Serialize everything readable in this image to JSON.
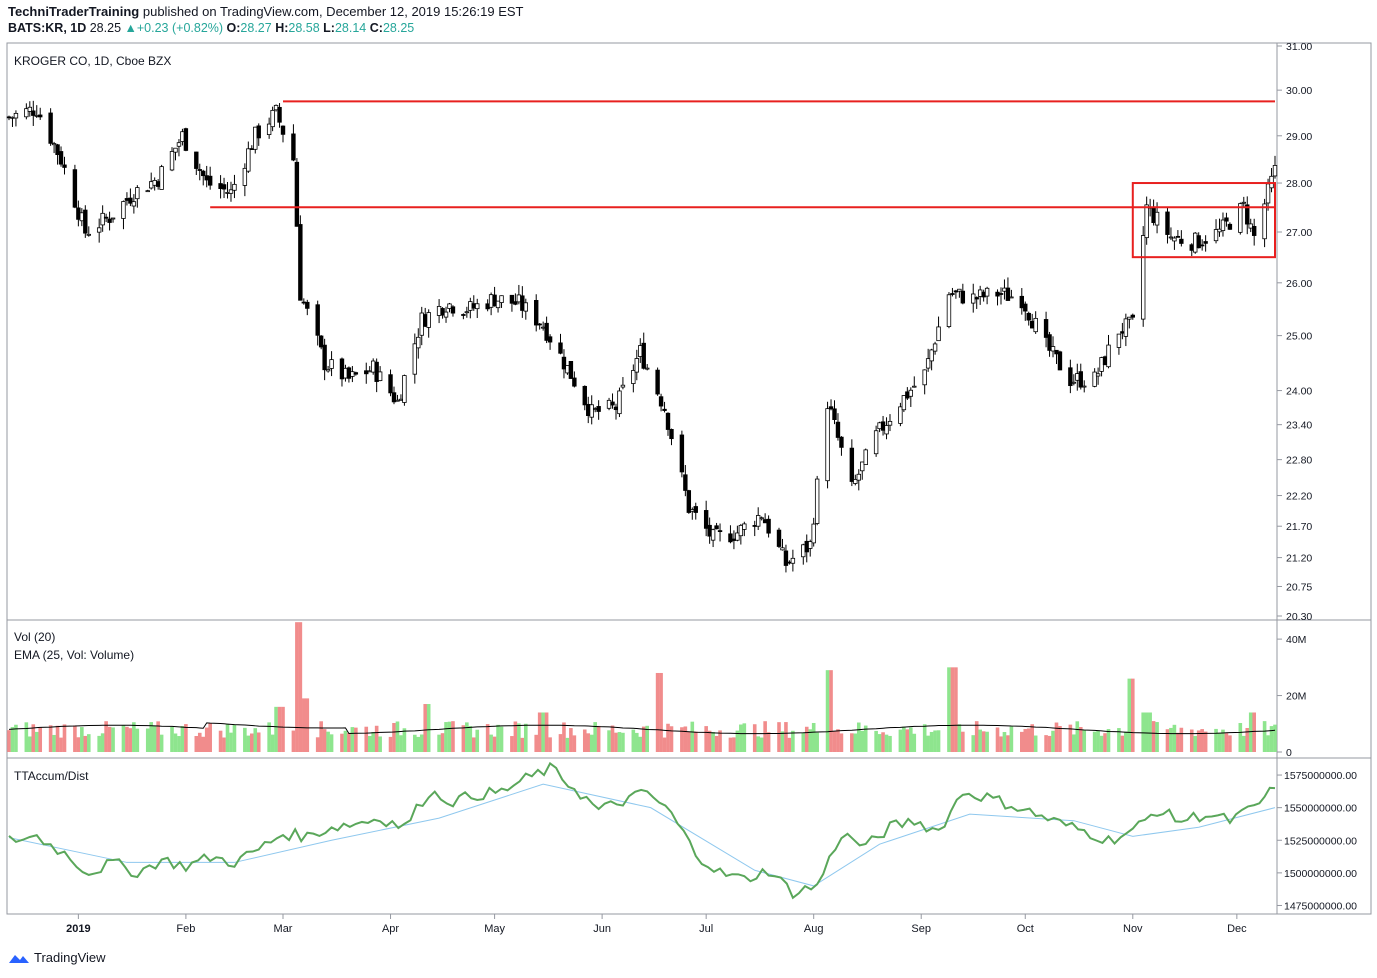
{
  "header": {
    "publisher": "TechniTraderTraining",
    "published_text": "published on TradingView.com, December 12, 2019 15:26:19 EST",
    "symbol": "BATS:KR, 1D",
    "last": "28.25",
    "change_arrow": "▲",
    "change": "+0.23 (+0.82%)",
    "o_label": "O:",
    "o_value": "28.27",
    "h_label": "H:",
    "h_value": "28.58",
    "l_label": "L:",
    "l_value": "28.14",
    "c_label": "C:",
    "c_value": "28.25"
  },
  "footer": {
    "brand": "TradingView"
  },
  "colors": {
    "bull_volume": "#8ee58e",
    "bear_volume": "#f18c8c",
    "accum": "#5aa75a",
    "accum_avg": "#8fc8ee",
    "box": "#e8201f"
  },
  "chart_data": [
    {
      "type": "candlestick",
      "title": "KROGER CO, 1D, Cboe BZX",
      "y_scale": "log",
      "ylim": [
        20.3,
        31.0
      ],
      "y_ticks": [
        "31.00",
        "30.00",
        "29.00",
        "28.00",
        "27.00",
        "26.00",
        "25.00",
        "24.00",
        "23.40",
        "22.80",
        "22.20",
        "21.70",
        "21.20",
        "20.75",
        "20.30"
      ],
      "x_ticks": [
        "2019",
        "Feb",
        "Mar",
        "Apr",
        "May",
        "Jun",
        "Jul",
        "Aug",
        "Sep",
        "Oct",
        "Nov",
        "Dec"
      ],
      "x_range": [
        "2018-12-12",
        "2019-12-12"
      ],
      "close_series": [
        [
          "2018-12-12",
          29.4
        ],
        [
          "2018-12-20",
          29.6
        ],
        [
          "2018-12-27",
          28.5
        ],
        [
          "2019-01-03",
          27.0
        ],
        [
          "2019-01-10",
          27.3
        ],
        [
          "2019-01-17",
          27.8
        ],
        [
          "2019-01-24",
          28.1
        ],
        [
          "2019-01-31",
          29.0
        ],
        [
          "2019-02-07",
          28.0
        ],
        [
          "2019-02-14",
          27.8
        ],
        [
          "2019-02-21",
          29.0
        ],
        [
          "2019-02-27",
          29.5
        ],
        [
          "2019-03-04",
          28.5
        ],
        [
          "2019-03-06",
          25.8
        ],
        [
          "2019-03-13",
          24.5
        ],
        [
          "2019-03-20",
          24.2
        ],
        [
          "2019-03-27",
          24.4
        ],
        [
          "2019-04-03",
          23.8
        ],
        [
          "2019-04-10",
          25.3
        ],
        [
          "2019-04-17",
          25.6
        ],
        [
          "2019-04-24",
          25.5
        ],
        [
          "2019-05-01",
          25.7
        ],
        [
          "2019-05-08",
          25.6
        ],
        [
          "2019-05-15",
          25.2
        ],
        [
          "2019-05-22",
          24.4
        ],
        [
          "2019-05-29",
          23.6
        ],
        [
          "2019-06-05",
          23.7
        ],
        [
          "2019-06-12",
          24.7
        ],
        [
          "2019-06-19",
          23.7
        ],
        [
          "2019-06-26",
          22.0
        ],
        [
          "2019-07-03",
          21.5
        ],
        [
          "2019-07-10",
          21.6
        ],
        [
          "2019-07-17",
          21.9
        ],
        [
          "2019-07-24",
          21.1
        ],
        [
          "2019-07-31",
          21.4
        ],
        [
          "2019-08-05",
          23.8
        ],
        [
          "2019-08-12",
          22.3
        ],
        [
          "2019-08-19",
          23.2
        ],
        [
          "2019-08-26",
          23.8
        ],
        [
          "2019-09-02",
          24.3
        ],
        [
          "2019-09-09",
          25.8
        ],
        [
          "2019-09-16",
          25.7
        ],
        [
          "2019-09-23",
          25.8
        ],
        [
          "2019-09-30",
          25.7
        ],
        [
          "2019-10-07",
          24.8
        ],
        [
          "2019-10-14",
          24.2
        ],
        [
          "2019-10-21",
          24.2
        ],
        [
          "2019-10-28",
          25.1
        ],
        [
          "2019-11-01",
          25.2
        ],
        [
          "2019-11-05",
          27.5
        ],
        [
          "2019-11-12",
          26.9
        ],
        [
          "2019-11-19",
          26.8
        ],
        [
          "2019-11-26",
          27.0
        ],
        [
          "2019-12-03",
          27.5
        ],
        [
          "2019-12-06",
          26.9
        ],
        [
          "2019-12-12",
          28.25
        ]
      ],
      "horizontal_lines": [
        {
          "value": 29.75,
          "from": "2019-03-01",
          "to": "2019-12-12",
          "color": "#e8201f"
        },
        {
          "value": 27.5,
          "from": "2019-02-08",
          "to": "2019-12-12",
          "color": "#e8201f"
        }
      ],
      "rectangle": {
        "from": "2019-11-01",
        "to": "2019-12-12",
        "top": 28.0,
        "bottom": 26.5,
        "color": "#e8201f"
      }
    },
    {
      "type": "bar",
      "title": "Vol (20)",
      "series_label": "EMA (25, Vol: Volume)",
      "ylim": [
        0,
        45
      ],
      "y_ticks": [
        "40M",
        "20M",
        "0"
      ],
      "unit": "M",
      "volume_ema_level": 8,
      "spikes": [
        [
          "2019-03-06",
          46
        ],
        [
          "2019-02-28",
          16
        ],
        [
          "2019-03-08",
          19
        ],
        [
          "2019-06-17",
          28
        ],
        [
          "2019-08-05",
          29
        ],
        [
          "2019-09-10",
          30
        ],
        [
          "2019-11-01",
          26
        ],
        [
          "2019-11-05",
          14
        ],
        [
          "2019-12-06",
          14
        ],
        [
          "2019-05-15",
          14
        ],
        [
          "2019-04-12",
          17
        ]
      ]
    },
    {
      "type": "line",
      "title": "TTAccum/Dist",
      "ylim": [
        1470000000,
        1585000000
      ],
      "y_ticks": [
        "1575000000.00",
        "1550000000.00",
        "1525000000.00",
        "1500000000.00",
        "1475000000.00"
      ],
      "series_points": [
        [
          "2018-12-12",
          1525000000.0
        ],
        [
          "2018-12-20",
          1528000000.0
        ],
        [
          "2018-12-28",
          1515000000.0
        ],
        [
          "2019-01-04",
          1500000000.0
        ],
        [
          "2019-01-11",
          1508000000.0
        ],
        [
          "2019-01-18",
          1500000000.0
        ],
        [
          "2019-01-25",
          1510000000.0
        ],
        [
          "2019-02-01",
          1505000000.0
        ],
        [
          "2019-02-08",
          1512000000.0
        ],
        [
          "2019-02-15",
          1508000000.0
        ],
        [
          "2019-02-22",
          1518000000.0
        ],
        [
          "2019-03-01",
          1530000000.0
        ],
        [
          "2019-03-08",
          1528000000.0
        ],
        [
          "2019-03-15",
          1535000000.0
        ],
        [
          "2019-03-22",
          1538000000.0
        ],
        [
          "2019-03-29",
          1542000000.0
        ],
        [
          "2019-04-05",
          1535000000.0
        ],
        [
          "2019-04-12",
          1562000000.0
        ],
        [
          "2019-04-19",
          1555000000.0
        ],
        [
          "2019-04-26",
          1560000000.0
        ],
        [
          "2019-05-03",
          1562000000.0
        ],
        [
          "2019-05-10",
          1572000000.0
        ],
        [
          "2019-05-17",
          1580000000.0
        ],
        [
          "2019-05-24",
          1565000000.0
        ],
        [
          "2019-05-31",
          1548000000.0
        ],
        [
          "2019-06-07",
          1555000000.0
        ],
        [
          "2019-06-14",
          1562000000.0
        ],
        [
          "2019-06-21",
          1545000000.0
        ],
        [
          "2019-06-28",
          1515000000.0
        ],
        [
          "2019-07-05",
          1500000000.0
        ],
        [
          "2019-07-12",
          1495000000.0
        ],
        [
          "2019-07-19",
          1502000000.0
        ],
        [
          "2019-07-26",
          1485000000.0
        ],
        [
          "2019-08-02",
          1490000000.0
        ],
        [
          "2019-08-09",
          1530000000.0
        ],
        [
          "2019-08-16",
          1520000000.0
        ],
        [
          "2019-08-23",
          1535000000.0
        ],
        [
          "2019-08-30",
          1540000000.0
        ],
        [
          "2019-09-06",
          1532000000.0
        ],
        [
          "2019-09-13",
          1562000000.0
        ],
        [
          "2019-09-20",
          1558000000.0
        ],
        [
          "2019-09-27",
          1552000000.0
        ],
        [
          "2019-10-04",
          1545000000.0
        ],
        [
          "2019-10-11",
          1538000000.0
        ],
        [
          "2019-10-18",
          1532000000.0
        ],
        [
          "2019-10-25",
          1525000000.0
        ],
        [
          "2019-11-01",
          1532000000.0
        ],
        [
          "2019-11-08",
          1548000000.0
        ],
        [
          "2019-11-15",
          1540000000.0
        ],
        [
          "2019-11-22",
          1545000000.0
        ],
        [
          "2019-11-29",
          1540000000.0
        ],
        [
          "2019-12-06",
          1550000000.0
        ],
        [
          "2019-12-12",
          1565000000.0
        ]
      ],
      "average_points": [
        [
          "2018-12-12",
          1527000000.0
        ],
        [
          "2019-01-15",
          1508000000.0
        ],
        [
          "2019-02-15",
          1508000000.0
        ],
        [
          "2019-03-15",
          1525000000.0
        ],
        [
          "2019-04-15",
          1542000000.0
        ],
        [
          "2019-05-15",
          1568000000.0
        ],
        [
          "2019-06-15",
          1550000000.0
        ],
        [
          "2019-07-15",
          1502000000.0
        ],
        [
          "2019-08-01",
          1490000000.0
        ],
        [
          "2019-08-20",
          1522000000.0
        ],
        [
          "2019-09-15",
          1545000000.0
        ],
        [
          "2019-10-15",
          1540000000.0
        ],
        [
          "2019-11-01",
          1528000000.0
        ],
        [
          "2019-11-20",
          1535000000.0
        ],
        [
          "2019-12-12",
          1550000000.0
        ]
      ]
    }
  ]
}
